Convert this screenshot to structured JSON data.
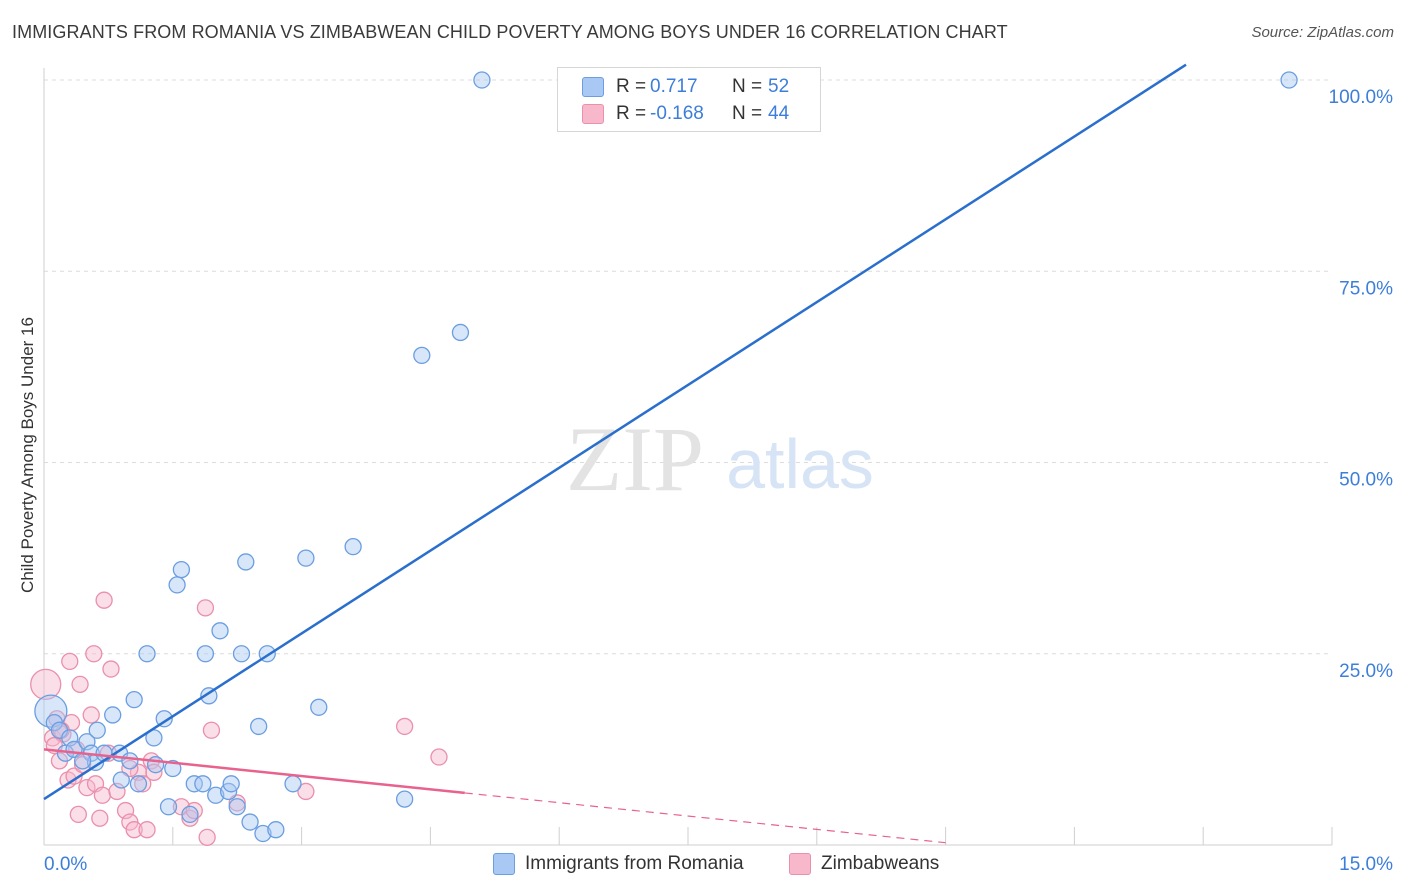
{
  "title": "IMMIGRANTS FROM ROMANIA VS ZIMBABWEAN CHILD POVERTY AMONG BOYS UNDER 16 CORRELATION CHART",
  "source": "Source: ZipAtlas.com",
  "watermark": {
    "zip": "ZIP",
    "atlas": "atlas"
  },
  "legend": {
    "romania": {
      "r_label": "R =",
      "r_value": "0.717",
      "n_label": "N =",
      "n_value": "52"
    },
    "zimbabwe": {
      "r_label": "R =",
      "r_value": "-0.168",
      "n_label": "N =",
      "n_value": "44"
    }
  },
  "bottom_legend": {
    "romania": "Immigrants from Romania",
    "zimbabwe": "Zimbabweans"
  },
  "colors": {
    "romania_fill": "#a9c8f3",
    "romania_stroke": "#6a9ee0",
    "romania_line": "#2a6fcd",
    "zimbabwe_fill": "#f7b8cc",
    "zimbabwe_stroke": "#ea8fac",
    "zimbabwe_line": "#e8628d",
    "tick_label": "#3c7ed9",
    "grid": "#dcdcdc"
  },
  "chart_data": {
    "type": "scatter",
    "title": "IMMIGRANTS FROM ROMANIA VS ZIMBABWEAN CHILD POVERTY AMONG BOYS UNDER 16 CORRELATION CHART",
    "xlabel": "",
    "ylabel": "Child Poverty Among Boys Under 16",
    "xlim": [
      0,
      15
    ],
    "ylim": [
      0,
      102
    ],
    "x_ticks": [
      0,
      15
    ],
    "x_tick_labels": [
      "0.0%",
      "15.0%"
    ],
    "y_ticks": [
      25,
      50,
      75,
      100
    ],
    "y_tick_labels": [
      "25.0%",
      "50.0%",
      "75.0%",
      "100.0%"
    ],
    "series": [
      {
        "name": "Immigrants from Romania",
        "color": "#a9c8f3",
        "trend": {
          "x0": 0,
          "y0": 6.0,
          "x1": 13.3,
          "y1": 102,
          "solid_to": 13.3
        },
        "points": [
          {
            "x": 0.08,
            "y": 17.5,
            "r": 16
          },
          {
            "x": 0.12,
            "y": 16.0
          },
          {
            "x": 0.18,
            "y": 15.0
          },
          {
            "x": 0.25,
            "y": 12.0
          },
          {
            "x": 0.3,
            "y": 14.0
          },
          {
            "x": 0.35,
            "y": 12.5
          },
          {
            "x": 0.5,
            "y": 13.5
          },
          {
            "x": 0.55,
            "y": 12.0
          },
          {
            "x": 0.62,
            "y": 15.0
          },
          {
            "x": 0.6,
            "y": 10.8
          },
          {
            "x": 0.8,
            "y": 17.0
          },
          {
            "x": 0.88,
            "y": 12.0
          },
          {
            "x": 0.9,
            "y": 8.5
          },
          {
            "x": 1.05,
            "y": 19.0
          },
          {
            "x": 1.1,
            "y": 8.0
          },
          {
            "x": 1.2,
            "y": 25.0
          },
          {
            "x": 1.28,
            "y": 14.0
          },
          {
            "x": 1.3,
            "y": 10.5
          },
          {
            "x": 1.4,
            "y": 16.5
          },
          {
            "x": 1.45,
            "y": 5.0
          },
          {
            "x": 1.5,
            "y": 10.0
          },
          {
            "x": 1.55,
            "y": 34.0
          },
          {
            "x": 1.6,
            "y": 36.0
          },
          {
            "x": 1.7,
            "y": 4.0
          },
          {
            "x": 1.75,
            "y": 8.0
          },
          {
            "x": 1.85,
            "y": 8.0
          },
          {
            "x": 1.88,
            "y": 25.0
          },
          {
            "x": 1.92,
            "y": 19.5
          },
          {
            "x": 2.05,
            "y": 28.0
          },
          {
            "x": 2.0,
            "y": 6.5
          },
          {
            "x": 2.15,
            "y": 7.0
          },
          {
            "x": 2.18,
            "y": 8.0
          },
          {
            "x": 2.3,
            "y": 25.0
          },
          {
            "x": 2.35,
            "y": 37.0
          },
          {
            "x": 2.4,
            "y": 3.0
          },
          {
            "x": 2.5,
            "y": 15.5
          },
          {
            "x": 2.55,
            "y": 1.5
          },
          {
            "x": 2.6,
            "y": 25.0
          },
          {
            "x": 2.7,
            "y": 2.0
          },
          {
            "x": 2.9,
            "y": 8.0
          },
          {
            "x": 3.05,
            "y": 37.5
          },
          {
            "x": 3.2,
            "y": 18.0
          },
          {
            "x": 3.6,
            "y": 39.0
          },
          {
            "x": 4.2,
            "y": 6.0
          },
          {
            "x": 4.4,
            "y": 64.0
          },
          {
            "x": 4.85,
            "y": 67.0
          },
          {
            "x": 5.1,
            "y": 100.0
          },
          {
            "x": 14.5,
            "y": 100.0
          },
          {
            "x": 2.25,
            "y": 5.0
          },
          {
            "x": 0.45,
            "y": 11.0
          },
          {
            "x": 1.0,
            "y": 11.0
          },
          {
            "x": 0.7,
            "y": 12.0
          }
        ]
      },
      {
        "name": "Zimbabweans",
        "color": "#f7b8cc",
        "trend": {
          "x0": 0,
          "y0": 12.5,
          "x1": 10.5,
          "y1": 0.3,
          "solid_to": 4.9
        },
        "points": [
          {
            "x": 0.02,
            "y": 21.0,
            "r": 15
          },
          {
            "x": 0.1,
            "y": 14.0
          },
          {
            "x": 0.15,
            "y": 16.5
          },
          {
            "x": 0.18,
            "y": 11.0
          },
          {
            "x": 0.22,
            "y": 14.5
          },
          {
            "x": 0.28,
            "y": 8.5
          },
          {
            "x": 0.3,
            "y": 24.0
          },
          {
            "x": 0.32,
            "y": 16.0
          },
          {
            "x": 0.35,
            "y": 9.0
          },
          {
            "x": 0.4,
            "y": 4.0
          },
          {
            "x": 0.42,
            "y": 21.0
          },
          {
            "x": 0.45,
            "y": 10.5
          },
          {
            "x": 0.5,
            "y": 7.5
          },
          {
            "x": 0.55,
            "y": 17.0
          },
          {
            "x": 0.58,
            "y": 25.0
          },
          {
            "x": 0.6,
            "y": 8.0
          },
          {
            "x": 0.65,
            "y": 3.5
          },
          {
            "x": 0.68,
            "y": 6.5
          },
          {
            "x": 0.7,
            "y": 32.0
          },
          {
            "x": 0.75,
            "y": 12.0
          },
          {
            "x": 0.78,
            "y": 23.0
          },
          {
            "x": 0.85,
            "y": 7.0
          },
          {
            "x": 0.95,
            "y": 4.5
          },
          {
            "x": 1.0,
            "y": 3.0
          },
          {
            "x": 1.05,
            "y": 2.0
          },
          {
            "x": 1.1,
            "y": 9.5
          },
          {
            "x": 1.15,
            "y": 8.0
          },
          {
            "x": 1.2,
            "y": 2.0
          },
          {
            "x": 1.25,
            "y": 11.0
          },
          {
            "x": 1.28,
            "y": 9.5
          },
          {
            "x": 1.6,
            "y": 5.0
          },
          {
            "x": 1.7,
            "y": 3.5
          },
          {
            "x": 1.75,
            "y": 4.5
          },
          {
            "x": 1.88,
            "y": 31.0
          },
          {
            "x": 1.9,
            "y": 1.0
          },
          {
            "x": 1.95,
            "y": 15.0
          },
          {
            "x": 2.25,
            "y": 5.5
          },
          {
            "x": 3.05,
            "y": 7.0
          },
          {
            "x": 4.2,
            "y": 15.5
          },
          {
            "x": 4.6,
            "y": 11.5
          },
          {
            "x": 0.12,
            "y": 13.0
          },
          {
            "x": 0.2,
            "y": 15.0
          },
          {
            "x": 0.38,
            "y": 12.5
          },
          {
            "x": 1.0,
            "y": 10.0
          }
        ]
      }
    ]
  }
}
